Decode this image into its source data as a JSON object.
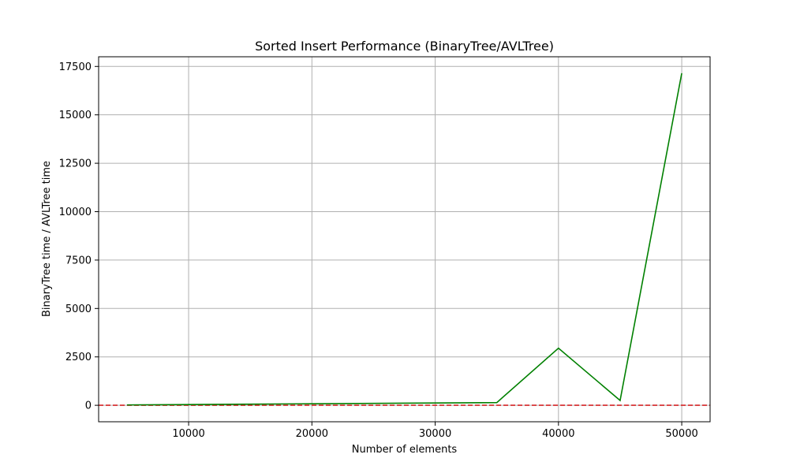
{
  "chart_data": {
    "type": "line",
    "title": "Sorted Insert Performance (BinaryTree/AVLTree)",
    "xlabel": "Number of elements",
    "ylabel": "BinaryTree time / AVLTree time",
    "xlim": [
      2700,
      52300
    ],
    "ylim": [
      -850,
      18000
    ],
    "xticks": [
      10000,
      20000,
      30000,
      40000,
      50000
    ],
    "yticks": [
      0,
      2500,
      5000,
      7500,
      10000,
      12500,
      15000,
      17500
    ],
    "grid": true,
    "series": [
      {
        "values_x": [
          5000,
          10000,
          15000,
          20000,
          25000,
          30000,
          35000,
          40000,
          45000,
          50000
        ],
        "values_y": [
          20,
          40,
          60,
          80,
          100,
          120,
          140,
          2950,
          250,
          17150
        ],
        "color": "#008000",
        "style": "solid"
      }
    ],
    "reference_line": {
      "y": 1,
      "color": "#d62728",
      "style": "dashed"
    },
    "colors": {
      "grid": "#b0b0b0",
      "axes": "#000000",
      "background": "#ffffff"
    }
  }
}
